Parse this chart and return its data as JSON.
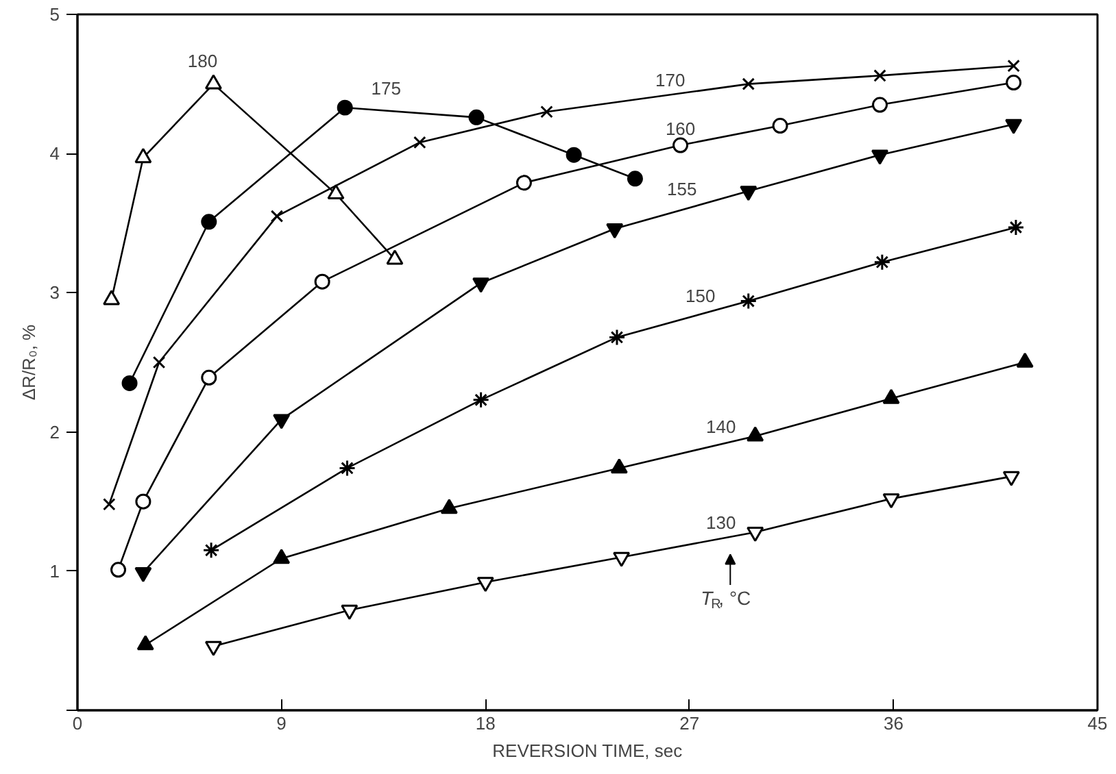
{
  "chart_data": {
    "type": "line",
    "xlabel": "REVERSION TIME, sec",
    "ylabel": "ΔR/R₀, %",
    "xlim": [
      0,
      45
    ],
    "ylim": [
      0,
      5
    ],
    "xticks": [
      0,
      9,
      18,
      27,
      36,
      45
    ],
    "yticks": [
      {
        "value": 0,
        "label": null
      },
      1,
      2,
      3,
      4,
      5
    ],
    "grid": false,
    "legend": false,
    "line_style": "solid",
    "annotations": [
      {
        "text": "T$_{R}$, °C",
        "x": 28.8,
        "y": 1.2
      }
    ],
    "series": [
      {
        "name": "180",
        "color": "#000000",
        "marker": "triangle",
        "x": [
          1.5,
          2.9,
          6.0,
          11.4,
          14.0
        ],
        "values": [
          2.95,
          3.97,
          4.5,
          3.71,
          3.24
        ]
      },
      {
        "name": "175",
        "color": "#000000",
        "marker": "circle",
        "x": [
          2.3,
          5.8,
          11.8,
          17.6,
          21.9,
          24.6
        ],
        "values": [
          2.35,
          3.51,
          4.33,
          4.26,
          3.99,
          3.82
        ]
      },
      {
        "name": "170",
        "color": "#000000",
        "marker": "cross",
        "x": [
          1.4,
          3.6,
          8.8,
          15.1,
          20.7,
          29.6,
          35.4,
          41.3
        ],
        "values": [
          1.48,
          2.5,
          3.55,
          4.08,
          4.3,
          4.5,
          4.56,
          4.63
        ]
      },
      {
        "name": "160",
        "color": "#000000",
        "marker": "circle",
        "x": [
          1.8,
          2.9,
          5.8,
          10.8,
          19.7,
          26.6,
          31.0,
          35.4,
          41.3
        ],
        "values": [
          1.01,
          1.5,
          2.39,
          3.08,
          3.79,
          4.06,
          4.2,
          4.35,
          4.51
        ]
      },
      {
        "name": "155",
        "color": "#000000",
        "marker": "triangle-down",
        "x": [
          2.9,
          9.0,
          17.8,
          23.7,
          29.6,
          35.4,
          41.3
        ],
        "values": [
          0.99,
          2.09,
          3.07,
          3.46,
          3.73,
          3.99,
          4.21
        ]
      },
      {
        "name": "150",
        "color": "#000000",
        "marker": "cross",
        "x": [
          5.9,
          11.9,
          17.8,
          23.8,
          29.6,
          35.5,
          41.4
        ],
        "values": [
          1.15,
          1.74,
          2.23,
          2.68,
          2.94,
          3.22,
          3.47
        ]
      },
      {
        "name": "140",
        "color": "#000000",
        "marker": "triangle",
        "x": [
          3.0,
          9.0,
          16.4,
          23.9,
          29.9,
          35.9,
          41.8
        ],
        "values": [
          0.47,
          1.09,
          1.45,
          1.74,
          1.97,
          2.24,
          2.5
        ]
      },
      {
        "name": "130",
        "color": "#000000",
        "marker": "triangle-down",
        "x": [
          6.0,
          12.0,
          18.0,
          24.0,
          29.9,
          35.9,
          41.2
        ],
        "values": [
          0.46,
          0.72,
          0.92,
          1.1,
          1.28,
          1.52,
          1.68
        ]
      }
    ]
  }
}
